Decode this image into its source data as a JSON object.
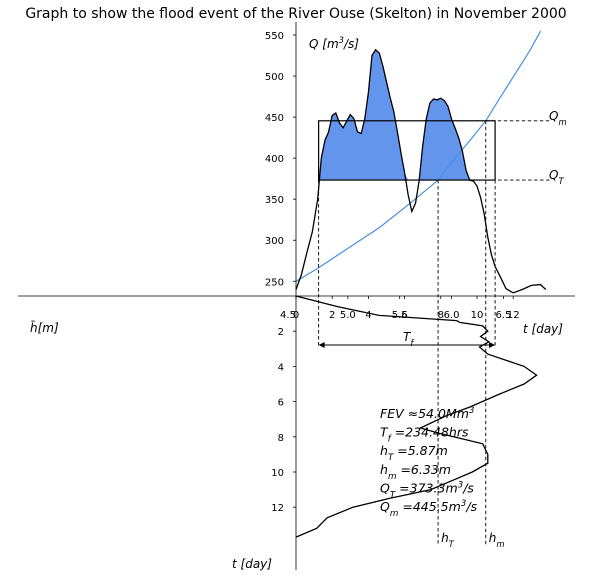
{
  "chart_data": {
    "type": "line",
    "title": "Graph to show the flood event of the River Ouse (Skelton) in November 2000",
    "panels": {
      "hydrograph": {
        "ylabel": "Q [m³/s]",
        "xlabel": "t [day]",
        "xlim": [
          0,
          15.5
        ],
        "ylim": [
          235,
          565
        ],
        "xticks": [
          0,
          2,
          4,
          6,
          8,
          10,
          12
        ],
        "yticks": [
          250,
          300,
          350,
          400,
          450,
          500,
          550
        ],
        "series": [
          {
            "x": [
              0,
              0.3,
              0.6,
              0.9,
              1.2,
              1.4,
              1.6,
              1.8,
              2.0,
              2.2,
              2.4,
              2.6,
              2.8,
              3.0,
              3.2,
              3.4,
              3.6,
              3.8,
              4.0,
              4.2,
              4.4,
              4.6,
              4.8,
              5.0,
              5.2,
              5.4,
              5.6,
              5.8,
              6.0,
              6.2,
              6.4,
              6.6,
              6.8,
              7.0,
              7.2,
              7.4,
              7.6,
              7.8,
              8.0,
              8.2,
              8.4,
              8.6,
              8.8,
              9.0,
              9.2,
              9.4,
              9.6,
              9.8,
              10.0,
              10.2,
              10.4,
              10.6,
              10.8,
              11.0,
              11.3,
              11.6,
              12.0,
              12.5,
              13.0,
              13.5,
              13.8
            ],
            "y": [
              240,
              258,
              285,
              310,
              350,
              400,
              422,
              432,
              452,
              455,
              443,
              437,
              445,
              453,
              448,
              432,
              430,
              448,
              480,
              525,
              532,
              528,
              512,
              493,
              474,
              457,
              432,
              406,
              382,
              355,
              335,
              345,
              372,
              415,
              448,
              467,
              472,
              471,
              473,
              470,
              463,
              447,
              436,
              424,
              408,
              385,
              373,
              372,
              366,
              352,
              332,
              303,
              282,
              268,
              255,
              241,
              236,
              240,
              245,
              246,
              240
            ],
            "fill_range": [
              1.25,
              11.0
            ],
            "fill_color": "#6495ed",
            "line_color": "#000000"
          }
        ],
        "annotations": [
          {
            "label": "Q_m",
            "value": 445.5,
            "style": "dashed"
          },
          {
            "label": "Q_T",
            "value": 373.3,
            "style": "dashed"
          },
          {
            "label": "T_f",
            "value": [
              1.25,
              11.0
            ],
            "style": "arrow"
          }
        ]
      },
      "rating_curve": {
        "xlabel": "h̄[m]",
        "xlim": [
          6.95,
          4.45
        ],
        "xticks": [
          6.5,
          6.0,
          5.5,
          5.0,
          4.5
        ],
        "color": "#4a90e2",
        "series": [
          {
            "h": [
              6.86,
              6.75,
              6.6,
              6.45,
              6.33,
              6.2,
              6.0,
              5.87,
              5.6,
              5.3,
              5.0,
              4.7,
              4.5
            ],
            "Q": [
              555,
              530,
              500,
              470,
              445.5,
              425,
              395,
              373.3,
              345,
              315,
              290,
              265,
              250
            ]
          }
        ],
        "markers": [
          {
            "label": "h_m",
            "value": 6.33
          },
          {
            "label": "h_T",
            "value": 5.87
          }
        ]
      },
      "stage_series": {
        "ylabel": "t [day]",
        "ylim": [
          0,
          13.8
        ],
        "yticks": [
          2,
          4,
          6,
          8,
          10,
          12
        ],
        "series": [
          {
            "h": [
              4.5,
              4.9,
              5.3,
              5.8,
              6.05,
              6.08,
              6.3,
              6.35,
              6.28,
              6.36,
              6.27,
              6.35,
              6.7,
              6.82,
              6.7,
              6.45,
              6.18,
              5.95,
              5.7,
              5.88,
              6.3,
              6.35,
              6.35,
              6.2,
              6.0,
              5.8,
              5.4,
              5.05,
              4.8,
              4.7,
              4.5
            ],
            "t": [
              0,
              0.6,
              1.1,
              1.3,
              1.4,
              1.5,
              1.7,
              2.0,
              2.3,
              2.6,
              2.9,
              3.3,
              4.0,
              4.5,
              5.0,
              5.6,
              6.3,
              6.8,
              7.5,
              7.8,
              8.4,
              9.0,
              9.5,
              10.0,
              10.5,
              11.0,
              11.5,
              12.0,
              12.6,
              13.2,
              13.7
            ]
          }
        ]
      }
    },
    "results": [
      {
        "name": "FEV",
        "op": "≈",
        "value": "54.0",
        "unit": "Mm³"
      },
      {
        "name": "T_f",
        "op": "=",
        "value": "234.48",
        "unit": "hrs"
      },
      {
        "name": "h_T",
        "op": "=",
        "value": "5.87",
        "unit": "m"
      },
      {
        "name": "h_m",
        "op": "=",
        "value": "6.33",
        "unit": "m"
      },
      {
        "name": "Q_T",
        "op": "=",
        "value": "373.3",
        "unit": "m³/s"
      },
      {
        "name": "Q_m",
        "op": "=",
        "value": "445.5",
        "unit": "m³/s"
      }
    ]
  }
}
